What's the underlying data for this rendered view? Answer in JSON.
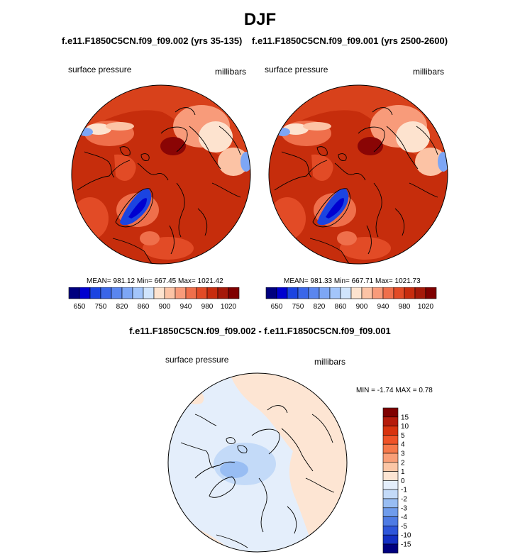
{
  "title": "DJF",
  "panels": [
    {
      "case_title": "f.e11.F1850C5CN.f09_f09.002 (yrs 35-135)",
      "left_label": "surface pressure",
      "right_label": "millibars",
      "mean": "981.12",
      "min": "667.45",
      "max": "1021.42"
    },
    {
      "case_title": "f.e11.F1850C5CN.f09_f09.001 (yrs 2500-2600)",
      "left_label": "surface pressure",
      "right_label": "millibars",
      "mean": "981.33",
      "min": "667.71",
      "max": "1021.73"
    }
  ],
  "stats_labels": {
    "mean": "MEAN=",
    "min": "Min=",
    "max": "Max="
  },
  "pressure_colorbar": {
    "colors": [
      "#00007f",
      "#0000d0",
      "#1b44e0",
      "#3a66e8",
      "#5a86ef",
      "#7da6f5",
      "#a3c5fa",
      "#d0e4fc",
      "#fde3cf",
      "#fcc3a5",
      "#f89b7a",
      "#ef6f4b",
      "#e24b26",
      "#c72c0e",
      "#a51909",
      "#7f0000"
    ],
    "labels": [
      "650",
      "750",
      "820",
      "860",
      "900",
      "940",
      "980",
      "1020"
    ]
  },
  "difference": {
    "title": "f.e11.F1850C5CN.f09_f09.002 - f.e11.F1850C5CN.f09_f09.001",
    "left_label": "surface pressure",
    "right_label": "millibars",
    "min_label": "MIN =",
    "min": "-1.74",
    "max_label": "MAX =",
    "max": "0.78",
    "colorbar": {
      "colors": [
        "#7f0000",
        "#b51b0b",
        "#d8330f",
        "#ef5328",
        "#f6794b",
        "#f99f78",
        "#fbc6a6",
        "#fde5d3",
        "#e4eefb",
        "#c3daf8",
        "#98bdf3",
        "#6f9cec",
        "#4e7be4",
        "#2e56da",
        "#1430c4",
        "#00007f"
      ],
      "labels": [
        "15",
        "10",
        "5",
        "4",
        "3",
        "2",
        "1",
        "0",
        "-1",
        "-2",
        "-3",
        "-4",
        "-5",
        "-10",
        "-15"
      ]
    }
  }
}
